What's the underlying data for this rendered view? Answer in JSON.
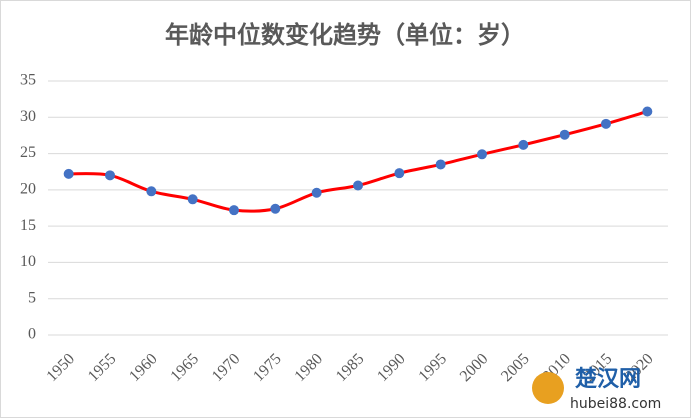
{
  "chart_data": {
    "type": "line",
    "title": "年龄中位数变化趋势（单位：岁）",
    "categories": [
      "1950",
      "1955",
      "1960",
      "1965",
      "1970",
      "1975",
      "1980",
      "1985",
      "1990",
      "1995",
      "2000",
      "2005",
      "2010",
      "2015",
      "2020"
    ],
    "series": [
      {
        "name": "年龄中位数",
        "color": "#ff0000",
        "marker_color": "#4472c4",
        "values": [
          22.2,
          22.0,
          19.8,
          18.7,
          17.2,
          17.4,
          19.6,
          20.6,
          22.3,
          23.5,
          24.9,
          26.2,
          27.6,
          29.1,
          30.8
        ]
      }
    ],
    "ylim": [
      0,
      35
    ],
    "yticks": [
      0,
      5,
      10,
      15,
      20,
      25,
      30,
      35
    ],
    "grid": true,
    "smooth": true
  },
  "watermark": {
    "name": "楚汉网",
    "url": "hubei88.com"
  }
}
